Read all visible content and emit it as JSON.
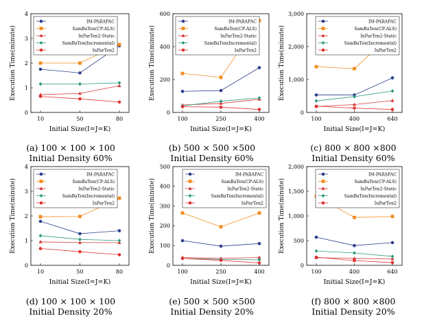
{
  "colors": {
    "im_parafac": "#2c3e8c",
    "cp_als": "#f28c1e",
    "static": "#d63a3a",
    "incremental": "#2e9a7c",
    "inparten2": "#e03030"
  },
  "chart_data": [
    {
      "type": "line",
      "ylabel": "Execution Time(minute)",
      "xlabel": "Initial Size(I=J=K)",
      "categories": [
        "10",
        "50",
        "80"
      ],
      "ylim": [
        0,
        4
      ],
      "yticks": [
        0,
        1,
        2,
        3,
        4
      ],
      "grid": false,
      "legend": "top-left",
      "caption": {
        "line1": "(a)  100 × 100 × 100",
        "line2": "Initial Density 60%"
      },
      "series": [
        {
          "name": "IM-PARAFAC",
          "key": "im_parafac",
          "marker": "circle",
          "values": [
            1.75,
            1.6,
            2.7
          ]
        },
        {
          "name": "SamBaTen(CP-ALS)",
          "key": "cp_als",
          "marker": "square",
          "values": [
            2.0,
            2.0,
            2.75
          ]
        },
        {
          "name": "InParTen2-Static",
          "key": "static",
          "marker": "triangle",
          "values": [
            0.72,
            0.77,
            1.08
          ]
        },
        {
          "name": "SamBaTen(Incremental)",
          "key": "incremental",
          "marker": "diamond",
          "values": [
            1.15,
            1.15,
            1.2
          ]
        },
        {
          "name": "InParTen2",
          "key": "inparten2",
          "marker": "circle",
          "values": [
            0.65,
            0.55,
            0.42
          ]
        }
      ]
    },
    {
      "type": "line",
      "ylabel": "Execution Time(minute)",
      "xlabel": "Initial Size(I=J=K)",
      "categories": [
        "100",
        "250",
        "400"
      ],
      "ylim": [
        0,
        600
      ],
      "yticks": [
        0,
        200,
        400,
        600
      ],
      "grid": false,
      "legend": "top-left",
      "caption": {
        "line1": "(b)  500 × 500 ×500",
        "line2": "Initial Density 60%"
      },
      "series": [
        {
          "name": "IM-PARAFAC",
          "key": "im_parafac",
          "marker": "circle",
          "values": [
            128,
            133,
            272
          ]
        },
        {
          "name": "SamBaTen(CP-ALS)",
          "key": "cp_als",
          "marker": "square",
          "values": [
            237,
            213,
            558
          ]
        },
        {
          "name": "InParTen2-Static",
          "key": "static",
          "marker": "triangle",
          "values": [
            45,
            55,
            80
          ]
        },
        {
          "name": "SamBaTen(Incremental)",
          "key": "incremental",
          "marker": "diamond",
          "values": [
            40,
            68,
            88
          ]
        },
        {
          "name": "InParTen2",
          "key": "inparten2",
          "marker": "circle",
          "values": [
            35,
            32,
            18
          ]
        }
      ]
    },
    {
      "type": "line",
      "ylabel": "Execution Time(minute)",
      "xlabel": "Initial Size(I=J=K)",
      "categories": [
        "100",
        "400",
        "640"
      ],
      "ylim": [
        0,
        3000
      ],
      "yticks": [
        0,
        1000,
        2000,
        3000
      ],
      "ytick_labels": [
        "0",
        "1,000",
        "2,000",
        "3,000"
      ],
      "grid": false,
      "legend": "top-right",
      "caption": {
        "line1": "(c)  800 × 800 ×800",
        "line2": "Initial Density 60%"
      },
      "series": [
        {
          "name": "IM-PARAFAC",
          "key": "im_parafac",
          "marker": "circle",
          "values": [
            530,
            530,
            1050
          ]
        },
        {
          "name": "SamBaTen(CP-ALS)",
          "key": "cp_als",
          "marker": "square",
          "values": [
            1390,
            1330,
            2400
          ]
        },
        {
          "name": "InParTen2-Static",
          "key": "static",
          "marker": "triangle",
          "values": [
            180,
            240,
            360
          ]
        },
        {
          "name": "SamBaTen(Incremental)",
          "key": "incremental",
          "marker": "diamond",
          "values": [
            350,
            480,
            650
          ]
        },
        {
          "name": "InParTen2",
          "key": "inparten2",
          "marker": "circle",
          "values": [
            190,
            130,
            90
          ]
        }
      ]
    },
    {
      "type": "line",
      "ylabel": "Execution Time(minute)",
      "xlabel": "Initial Size(I=J=K)",
      "categories": [
        "10",
        "50",
        "80"
      ],
      "ylim": [
        0,
        4
      ],
      "yticks": [
        0,
        1,
        2,
        3,
        4
      ],
      "grid": false,
      "legend": "top-left",
      "caption": {
        "line1": "(d)  100 × 100 × 100",
        "line2": "Initial Density 20%"
      },
      "series": [
        {
          "name": "IM-PARAFAC",
          "key": "im_parafac",
          "marker": "circle",
          "values": [
            1.78,
            1.28,
            1.4
          ]
        },
        {
          "name": "SamBaTen(CP-ALS)",
          "key": "cp_als",
          "marker": "square",
          "values": [
            1.97,
            1.98,
            2.72
          ]
        },
        {
          "name": "InParTen2-Static",
          "key": "static",
          "marker": "triangle",
          "values": [
            0.95,
            0.92,
            0.92
          ]
        },
        {
          "name": "SamBaTen(Incremental)",
          "key": "incremental",
          "marker": "diamond",
          "values": [
            1.2,
            1.05,
            1.0
          ]
        },
        {
          "name": "InParTen2",
          "key": "inparten2",
          "marker": "circle",
          "values": [
            0.68,
            0.55,
            0.43
          ]
        }
      ]
    },
    {
      "type": "line",
      "ylabel": "Execution Time(minute)",
      "xlabel": "Initial Size(I=J=K)",
      "categories": [
        "100",
        "250",
        "400"
      ],
      "ylim": [
        0,
        500
      ],
      "yticks": [
        0,
        100,
        200,
        300,
        400,
        500
      ],
      "grid": false,
      "legend": "top-right",
      "caption": {
        "line1": "(e)  500 × 500 ×500",
        "line2": "Initial Density 20%"
      },
      "series": [
        {
          "name": "IM-PARAFAC",
          "key": "im_parafac",
          "marker": "circle",
          "values": [
            125,
            97,
            110
          ]
        },
        {
          "name": "SamBaTen(CP-ALS)",
          "key": "cp_als",
          "marker": "square",
          "values": [
            265,
            195,
            265
          ]
        },
        {
          "name": "InParTen2-Static",
          "key": "static",
          "marker": "triangle",
          "values": [
            40,
            35,
            40
          ]
        },
        {
          "name": "SamBaTen(Incremental)",
          "key": "incremental",
          "marker": "diamond",
          "values": [
            35,
            30,
            28
          ]
        },
        {
          "name": "InParTen2",
          "key": "inparten2",
          "marker": "circle",
          "values": [
            35,
            25,
            12
          ]
        }
      ]
    },
    {
      "type": "line",
      "ylabel": "Execution Time(minute)",
      "xlabel": "Initial Size(I=J=K)",
      "categories": [
        "100",
        "400",
        "640"
      ],
      "ylim": [
        0,
        2000
      ],
      "yticks": [
        0,
        500,
        1000,
        1500,
        2000
      ],
      "ytick_labels": [
        "0",
        "500",
        "1,000",
        "1,500",
        "2,000"
      ],
      "grid": false,
      "legend": "top-right",
      "caption": {
        "line1": "(f)  800 × 800 ×800",
        "line2": "Initial Density 20%"
      },
      "series": [
        {
          "name": "IM-PARAFAC",
          "key": "im_parafac",
          "marker": "circle",
          "values": [
            570,
            400,
            460
          ]
        },
        {
          "name": "SamBaTen(CP-ALS)",
          "key": "cp_als",
          "marker": "square",
          "values": [
            1400,
            970,
            990
          ]
        },
        {
          "name": "InParTen2-Static",
          "key": "static",
          "marker": "triangle",
          "values": [
            155,
            140,
            130
          ]
        },
        {
          "name": "SamBaTen(Incremental)",
          "key": "incremental",
          "marker": "diamond",
          "values": [
            290,
            250,
            180
          ]
        },
        {
          "name": "InParTen2",
          "key": "inparten2",
          "marker": "circle",
          "values": [
            165,
            95,
            55
          ]
        }
      ]
    }
  ]
}
